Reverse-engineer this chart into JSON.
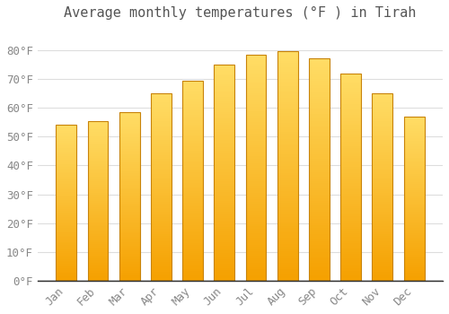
{
  "title": "Average monthly temperatures (°F ) in Tirah",
  "months": [
    "Jan",
    "Feb",
    "Mar",
    "Apr",
    "May",
    "Jun",
    "Jul",
    "Aug",
    "Sep",
    "Oct",
    "Nov",
    "Dec"
  ],
  "values": [
    54,
    55.5,
    58.5,
    65,
    69.5,
    75,
    78.5,
    79.5,
    77,
    72,
    65,
    57
  ],
  "bar_color_top": "#FFDD66",
  "bar_color_bottom": "#F5A000",
  "bar_edge_color": "#C8830A",
  "background_color": "#FFFFFF",
  "plot_bg_color": "#FFFFFF",
  "grid_color": "#DDDDDD",
  "text_color": "#888888",
  "title_color": "#555555",
  "ylim": [
    0,
    88
  ],
  "yticks": [
    0,
    10,
    20,
    30,
    40,
    50,
    60,
    70,
    80
  ],
  "ylabel_suffix": "°F",
  "title_fontsize": 11,
  "tick_fontsize": 9,
  "bar_width": 0.65
}
